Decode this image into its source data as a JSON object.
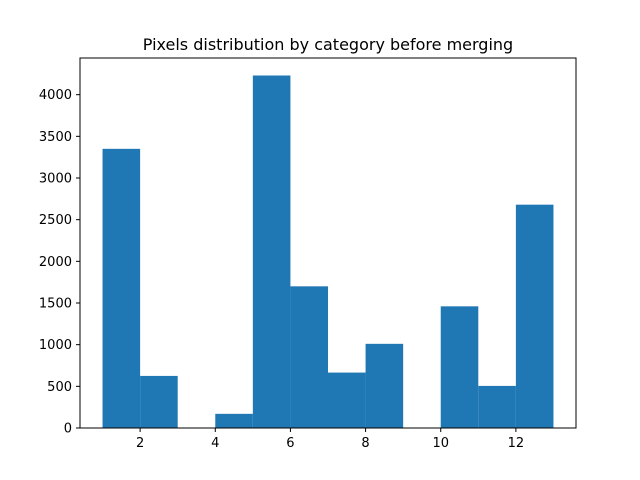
{
  "chart_data": {
    "type": "bar",
    "title": "Pixels distribution by category before merging",
    "xlabel": "",
    "ylabel": "",
    "bins": [
      {
        "x0": 1,
        "x1": 2,
        "value": 3350
      },
      {
        "x0": 2,
        "x1": 3,
        "value": 625
      },
      {
        "x0": 3,
        "x1": 4,
        "value": 0
      },
      {
        "x0": 4,
        "x1": 5,
        "value": 170
      },
      {
        "x0": 5,
        "x1": 6,
        "value": 4230
      },
      {
        "x0": 6,
        "x1": 7,
        "value": 1700
      },
      {
        "x0": 7,
        "x1": 8,
        "value": 665
      },
      {
        "x0": 8,
        "x1": 9,
        "value": 1010
      },
      {
        "x0": 9,
        "x1": 10,
        "value": 0
      },
      {
        "x0": 10,
        "x1": 11,
        "value": 1460
      },
      {
        "x0": 11,
        "x1": 12,
        "value": 505
      },
      {
        "x0": 12,
        "x1": 13,
        "value": 2680
      }
    ],
    "xlim": [
      0.4,
      13.6
    ],
    "ylim": [
      0,
      4440
    ],
    "xticks": [
      "2",
      "4",
      "6",
      "8",
      "10",
      "12"
    ],
    "yticks": [
      "0",
      "500",
      "1000",
      "1500",
      "2000",
      "2500",
      "3000",
      "3500",
      "4000"
    ],
    "bar_color": "#1f77b4",
    "grid": false,
    "legend": "none"
  }
}
